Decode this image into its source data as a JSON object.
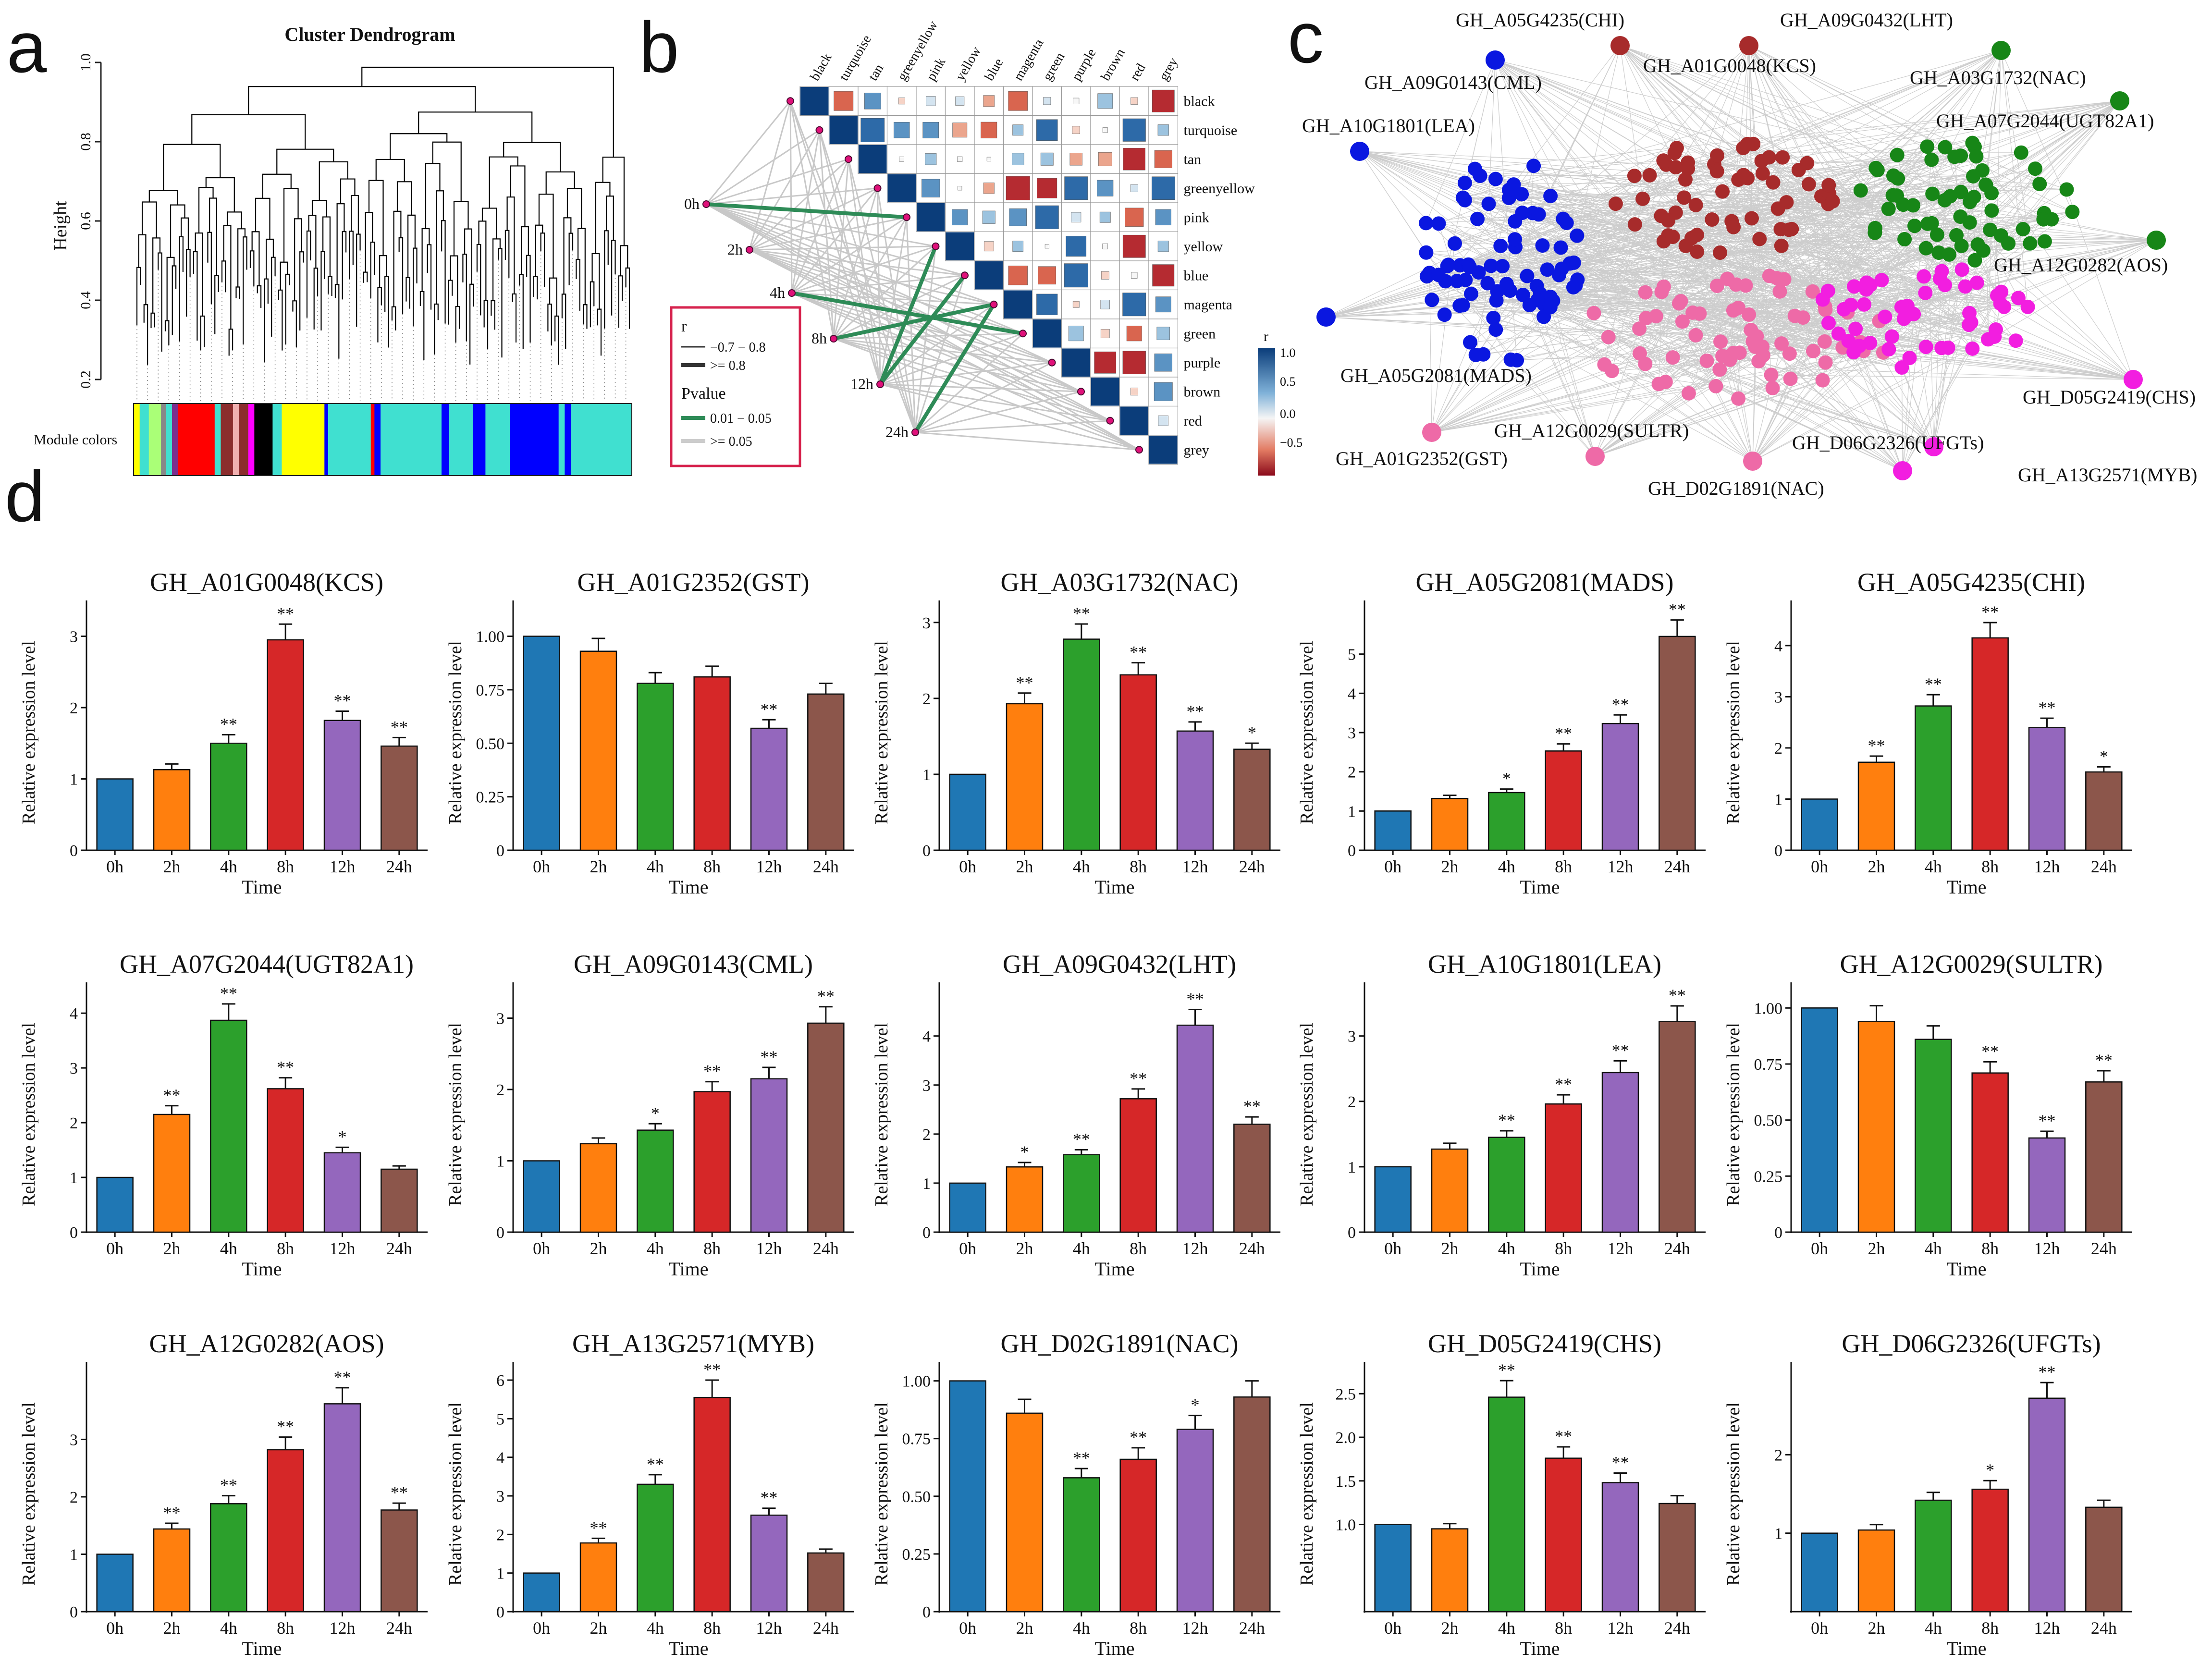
{
  "panel_labels": {
    "a": "a",
    "b": "b",
    "c": "c",
    "d": "d"
  },
  "colors": {
    "bar_0h": "#1f77b4",
    "bar_2h": "#ff7f0e",
    "bar_4h": "#2ca02c",
    "bar_8h": "#d62728",
    "bar_12h": "#9467bd",
    "bar_24h": "#8c564b",
    "net_blue": "#0a17e0",
    "net_darkred": "#a72b2b",
    "net_green": "#178617",
    "net_pink": "#ee6aa7",
    "net_magenta": "#f21ee0",
    "legend_frame": "#d6224d",
    "sig_green": "#2e8b57"
  },
  "panel_a": {
    "title": "Cluster Dendrogram",
    "ylabel": "Height",
    "yticks": [
      "0.2",
      "0.4",
      "0.6",
      "0.8",
      "1.0"
    ],
    "ylim": [
      0.2,
      1.0
    ],
    "module_colors_label": "Module colors",
    "module_bar": [
      {
        "color": "#ffff00",
        "w": 1
      },
      {
        "color": "#40e0d0",
        "w": 1.5
      },
      {
        "color": "#aaff77",
        "w": 2
      },
      {
        "color": "#888888",
        "w": 0.8
      },
      {
        "color": "#40e0d0",
        "w": 1
      },
      {
        "color": "#7b2e8e",
        "w": 1
      },
      {
        "color": "#ff0000",
        "w": 6
      },
      {
        "color": "#40e0d0",
        "w": 1
      },
      {
        "color": "#8b2d2d",
        "w": 2
      },
      {
        "color": "#f0b0b0",
        "w": 1
      },
      {
        "color": "#8b2d2d",
        "w": 1.5
      },
      {
        "color": "#ff00ff",
        "w": 1
      },
      {
        "color": "#000000",
        "w": 3
      },
      {
        "color": "#40e0d0",
        "w": 1.5
      },
      {
        "color": "#ffff00",
        "w": 7
      },
      {
        "color": "#0000ff",
        "w": 0.6
      },
      {
        "color": "#40e0d0",
        "w": 7
      },
      {
        "color": "#ff0000",
        "w": 0.6
      },
      {
        "color": "#0000ff",
        "w": 1
      },
      {
        "color": "#40e0d0",
        "w": 10
      },
      {
        "color": "#0000ff",
        "w": 1.2
      },
      {
        "color": "#40e0d0",
        "w": 4
      },
      {
        "color": "#0000ff",
        "w": 2
      },
      {
        "color": "#40e0d0",
        "w": 4
      },
      {
        "color": "#0000ff",
        "w": 8
      },
      {
        "color": "#40e0d0",
        "w": 1
      },
      {
        "color": "#0000ff",
        "w": 1
      },
      {
        "color": "#40e0d0",
        "w": 10
      }
    ]
  },
  "panel_b": {
    "modules": [
      "black",
      "turquoise",
      "tan",
      "greenyellow",
      "pink",
      "yellow",
      "blue",
      "magenta",
      "green",
      "purple",
      "brown",
      "red",
      "grey"
    ],
    "timepoints": [
      "0h",
      "2h",
      "4h",
      "8h",
      "12h",
      "24h"
    ],
    "legend": {
      "r_title": "r",
      "r_item1": "−0.7 − 0.8",
      "r_item2": ">= 0.8",
      "p_title": "Pvalue",
      "p_item1": "0.01 − 0.05",
      "p_item2": ">= 0.05"
    },
    "colorbar": {
      "title": "r",
      "ticks": [
        "1.0",
        "0.5",
        "0.0",
        "−0.5"
      ]
    },
    "sig_links": [
      [
        0,
        4
      ],
      [
        2,
        8
      ],
      [
        3,
        7
      ],
      [
        4,
        6
      ],
      [
        4,
        5
      ],
      [
        5,
        7
      ]
    ]
  },
  "panel_c": {
    "labels": [
      "GH_A05G4235(CHI)",
      "GH_A09G0432(LHT)",
      "GH_A09G0143(CML)",
      "GH_A01G0048(KCS)",
      "GH_A03G1732(NAC)",
      "GH_A10G1801(LEA)",
      "GH_A07G2044(UGT82A1)",
      "GH_A12G0282(AOS)",
      "GH_A05G2081(MADS)",
      "GH_D05G2419(CHS)",
      "GH_A12G0029(SULTR)",
      "GH_D06G2326(UFGTs)",
      "GH_A01G2352(GST)",
      "GH_A13G2571(MYB)",
      "GH_D02G1891(NAC)"
    ]
  },
  "chart_data": [
    {
      "type": "bar",
      "title": "GH_A01G0048(KCS)",
      "categories": [
        "0h",
        "2h",
        "4h",
        "8h",
        "12h",
        "24h"
      ],
      "values": [
        1.0,
        1.13,
        1.5,
        2.95,
        1.82,
        1.46
      ],
      "errors": [
        0,
        0.08,
        0.12,
        0.22,
        0.13,
        0.12
      ],
      "sig": [
        "",
        "",
        "**",
        "**",
        "**",
        "**"
      ],
      "yticks": [
        "0",
        "1",
        "2",
        "3"
      ],
      "ytick_values": [
        0,
        1,
        2,
        3
      ],
      "ylim": [
        0,
        3.3
      ],
      "xlabel": "Time",
      "ylabel": "Relative expression level"
    },
    {
      "type": "bar",
      "title": "GH_A01G2352(GST)",
      "categories": [
        "0h",
        "2h",
        "4h",
        "8h",
        "12h",
        "24h"
      ],
      "values": [
        1.0,
        0.93,
        0.78,
        0.81,
        0.57,
        0.73
      ],
      "errors": [
        0,
        0.06,
        0.05,
        0.05,
        0.04,
        0.05
      ],
      "sig": [
        "",
        "",
        "",
        "",
        "**",
        ""
      ],
      "yticks": [
        "0",
        "0.25",
        "0.50",
        "0.75",
        "1.00"
      ],
      "ytick_values": [
        0,
        0.25,
        0.5,
        0.75,
        1.0
      ],
      "ylim": [
        0,
        1.1
      ],
      "xlabel": "Time",
      "ylabel": "Relative expression level"
    },
    {
      "type": "bar",
      "title": "GH_A03G1732(NAC)",
      "categories": [
        "0h",
        "2h",
        "4h",
        "8h",
        "12h",
        "24h"
      ],
      "values": [
        1.0,
        1.93,
        2.78,
        2.31,
        1.57,
        1.33
      ],
      "errors": [
        0,
        0.14,
        0.2,
        0.16,
        0.12,
        0.08
      ],
      "sig": [
        "",
        "**",
        "**",
        "**",
        "**",
        "*"
      ],
      "yticks": [
        "0",
        "1",
        "2",
        "3"
      ],
      "ytick_values": [
        0,
        1,
        2,
        3
      ],
      "ylim": [
        0,
        3.1
      ],
      "xlabel": "Time",
      "ylabel": "Relative expression level"
    },
    {
      "type": "bar",
      "title": "GH_A05G2081(MADS)",
      "categories": [
        "0h",
        "2h",
        "4h",
        "8h",
        "12h",
        "24h"
      ],
      "values": [
        1.0,
        1.32,
        1.47,
        2.53,
        3.23,
        5.45
      ],
      "errors": [
        0,
        0.08,
        0.09,
        0.18,
        0.22,
        0.42
      ],
      "sig": [
        "",
        "",
        "*",
        "**",
        "**",
        "**"
      ],
      "yticks": [
        "0",
        "1",
        "2",
        "3",
        "4",
        "5"
      ],
      "ytick_values": [
        0,
        1,
        2,
        3,
        4,
        5
      ],
      "ylim": [
        0,
        6.0
      ],
      "xlabel": "Time",
      "ylabel": "Relative expression level"
    },
    {
      "type": "bar",
      "title": "GH_A05G4235(CHI)",
      "categories": [
        "0h",
        "2h",
        "4h",
        "8h",
        "12h",
        "24h"
      ],
      "values": [
        1.0,
        1.72,
        2.82,
        4.15,
        2.4,
        1.53
      ],
      "errors": [
        0,
        0.12,
        0.22,
        0.3,
        0.18,
        0.1
      ],
      "sig": [
        "",
        "**",
        "**",
        "**",
        "**",
        "*"
      ],
      "yticks": [
        "0",
        "1",
        "2",
        "3",
        "4"
      ],
      "ytick_values": [
        0,
        1,
        2,
        3,
        4
      ],
      "ylim": [
        0,
        4.6
      ],
      "xlabel": "Time",
      "ylabel": "Relative expression level"
    },
    {
      "type": "bar",
      "title": "GH_A07G2044(UGT82A1)",
      "categories": [
        "0h",
        "2h",
        "4h",
        "8h",
        "12h",
        "24h"
      ],
      "values": [
        1.0,
        2.15,
        3.87,
        2.62,
        1.45,
        1.15
      ],
      "errors": [
        0,
        0.16,
        0.3,
        0.2,
        0.1,
        0.06
      ],
      "sig": [
        "",
        "**",
        "**",
        "**",
        "*",
        ""
      ],
      "yticks": [
        "0",
        "1",
        "2",
        "3",
        "4"
      ],
      "ytick_values": [
        0,
        1,
        2,
        3,
        4
      ],
      "ylim": [
        0,
        4.3
      ],
      "xlabel": "Time",
      "ylabel": "Relative expression level"
    },
    {
      "type": "bar",
      "title": "GH_A09G0143(CML)",
      "categories": [
        "0h",
        "2h",
        "4h",
        "8h",
        "12h",
        "24h"
      ],
      "values": [
        1.0,
        1.24,
        1.43,
        1.97,
        2.15,
        2.93
      ],
      "errors": [
        0,
        0.08,
        0.09,
        0.14,
        0.16,
        0.23
      ],
      "sig": [
        "",
        "",
        "*",
        "**",
        "**",
        "**"
      ],
      "yticks": [
        "0",
        "1",
        "2",
        "3"
      ],
      "ytick_values": [
        0,
        1,
        2,
        3
      ],
      "ylim": [
        0,
        3.3
      ],
      "xlabel": "Time",
      "ylabel": "Relative expression level"
    },
    {
      "type": "bar",
      "title": "GH_A09G0432(LHT)",
      "categories": [
        "0h",
        "2h",
        "4h",
        "8h",
        "12h",
        "24h"
      ],
      "values": [
        1.0,
        1.33,
        1.58,
        2.72,
        4.22,
        2.2
      ],
      "errors": [
        0,
        0.09,
        0.1,
        0.2,
        0.32,
        0.15
      ],
      "sig": [
        "",
        "*",
        "**",
        "**",
        "**",
        "**"
      ],
      "yticks": [
        "0",
        "1",
        "2",
        "3",
        "4"
      ],
      "ytick_values": [
        0,
        1,
        2,
        3,
        4
      ],
      "ylim": [
        0,
        4.8
      ],
      "xlabel": "Time",
      "ylabel": "Relative expression level"
    },
    {
      "type": "bar",
      "title": "GH_A10G1801(LEA)",
      "categories": [
        "0h",
        "2h",
        "4h",
        "8h",
        "12h",
        "24h"
      ],
      "values": [
        1.0,
        1.27,
        1.45,
        1.96,
        2.44,
        3.22
      ],
      "errors": [
        0,
        0.09,
        0.1,
        0.14,
        0.18,
        0.24
      ],
      "sig": [
        "",
        "",
        "**",
        "**",
        "**",
        "**"
      ],
      "yticks": [
        "0",
        "1",
        "2",
        "3"
      ],
      "ytick_values": [
        0,
        1,
        2,
        3
      ],
      "ylim": [
        0,
        3.6
      ],
      "xlabel": "Time",
      "ylabel": "Relative expression level"
    },
    {
      "type": "bar",
      "title": "GH_A12G0029(SULTR)",
      "categories": [
        "0h",
        "2h",
        "4h",
        "8h",
        "12h",
        "24h"
      ],
      "values": [
        1.0,
        0.94,
        0.86,
        0.71,
        0.42,
        0.67
      ],
      "errors": [
        0,
        0.07,
        0.06,
        0.05,
        0.03,
        0.05
      ],
      "sig": [
        "",
        "",
        "",
        "**",
        "**",
        "**"
      ],
      "yticks": [
        "0",
        "0.25",
        "0.50",
        "0.75",
        "1.00"
      ],
      "ytick_values": [
        0,
        0.25,
        0.5,
        0.75,
        1.0
      ],
      "ylim": [
        0,
        1.05
      ],
      "xlabel": "Time",
      "ylabel": "Relative expression level"
    },
    {
      "type": "bar",
      "title": "GH_A12G0282(AOS)",
      "categories": [
        "0h",
        "2h",
        "4h",
        "8h",
        "12h",
        "24h"
      ],
      "values": [
        1.0,
        1.44,
        1.88,
        2.82,
        3.62,
        1.77
      ],
      "errors": [
        0,
        0.1,
        0.14,
        0.22,
        0.28,
        0.12
      ],
      "sig": [
        "",
        "**",
        "**",
        "**",
        "**",
        "**"
      ],
      "yticks": [
        "0",
        "1",
        "2",
        "3"
      ],
      "ytick_values": [
        0,
        1,
        2,
        3
      ],
      "ylim": [
        0,
        4.1
      ],
      "xlabel": "Time",
      "ylabel": "Relative expression level"
    },
    {
      "type": "bar",
      "title": "GH_A13G2571(MYB)",
      "categories": [
        "0h",
        "2h",
        "4h",
        "8h",
        "12h",
        "24h"
      ],
      "values": [
        1.0,
        1.78,
        3.3,
        5.55,
        2.5,
        1.52
      ],
      "errors": [
        0,
        0.12,
        0.25,
        0.45,
        0.18,
        0.1
      ],
      "sig": [
        "",
        "**",
        "**",
        "**",
        "**",
        ""
      ],
      "yticks": [
        "0",
        "1",
        "2",
        "3",
        "4",
        "5",
        "6"
      ],
      "ytick_values": [
        0,
        1,
        2,
        3,
        4,
        5,
        6
      ],
      "ylim": [
        0,
        6.1
      ],
      "xlabel": "Time",
      "ylabel": "Relative expression level"
    },
    {
      "type": "bar",
      "title": "GH_D02G1891(NAC)",
      "categories": [
        "0h",
        "2h",
        "4h",
        "8h",
        "12h",
        "24h"
      ],
      "values": [
        1.0,
        0.86,
        0.58,
        0.66,
        0.79,
        0.93
      ],
      "errors": [
        0,
        0.06,
        0.04,
        0.05,
        0.06,
        0.07
      ],
      "sig": [
        "",
        "",
        "**",
        "**",
        "*",
        ""
      ],
      "yticks": [
        "0",
        "0.25",
        "0.50",
        "0.75",
        "1.00"
      ],
      "ytick_values": [
        0,
        0.25,
        0.5,
        0.75,
        1.0
      ],
      "ylim": [
        0,
        1.02
      ],
      "xlabel": "Time",
      "ylabel": "Relative expression level"
    },
    {
      "type": "bar",
      "title": "GH_D05G2419(CHS)",
      "categories": [
        "0h",
        "2h",
        "4h",
        "8h",
        "12h",
        "24h"
      ],
      "values": [
        1.0,
        0.95,
        2.46,
        1.76,
        1.48,
        1.24
      ],
      "errors": [
        0,
        0.06,
        0.19,
        0.13,
        0.11,
        0.09
      ],
      "sig": [
        "",
        "",
        "**",
        "**",
        "**",
        ""
      ],
      "yticks": [
        "1.0",
        "1.5",
        "2.0",
        "2.5"
      ],
      "ytick_values": [
        1.0,
        1.5,
        2.0,
        2.5
      ],
      "ylim": [
        0,
        2.7
      ],
      "xlabel": "Time",
      "ylabel": "Relative expression level"
    },
    {
      "type": "bar",
      "title": "GH_D06G2326(UFGTs)",
      "categories": [
        "0h",
        "2h",
        "4h",
        "8h",
        "12h",
        "24h"
      ],
      "values": [
        1.0,
        1.04,
        1.42,
        1.56,
        2.72,
        1.33
      ],
      "errors": [
        0,
        0.07,
        0.1,
        0.11,
        0.2,
        0.09
      ],
      "sig": [
        "",
        "",
        "",
        "*",
        "**",
        ""
      ],
      "yticks": [
        "1",
        "2"
      ],
      "ytick_values": [
        1,
        2
      ],
      "ylim": [
        0,
        3.0
      ],
      "xlabel": "Time",
      "ylabel": "Relative expression level"
    }
  ]
}
